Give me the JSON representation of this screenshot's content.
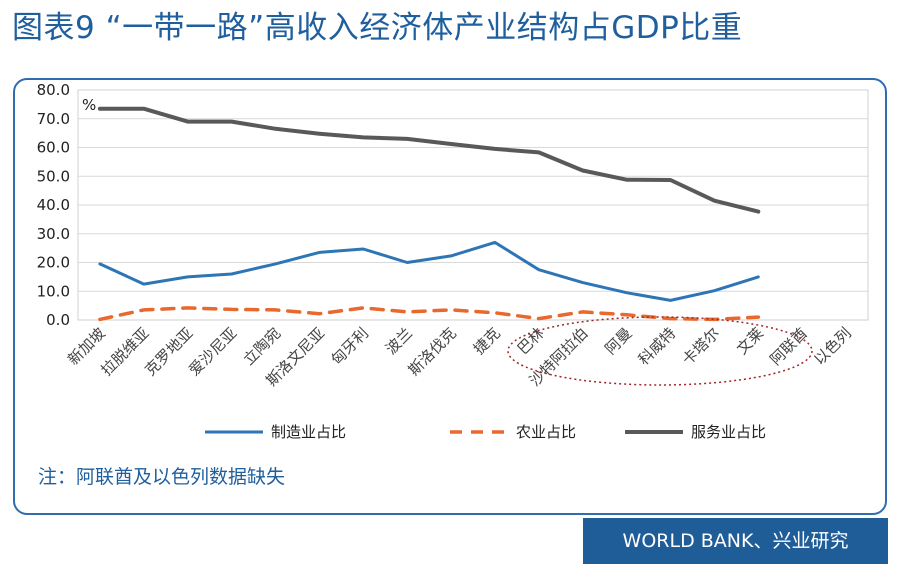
{
  "header": {
    "title": "图表9 “一带一路”高收入经济体产业结构占GDP比重"
  },
  "note": "注：阿联酋及以色列数据缺失",
  "source": "WORLD BANK、兴业研究",
  "colors": {
    "manufacturing": "#2e75b6",
    "agriculture": "#e8692e",
    "services": "#595959",
    "accent": "#1f5d98",
    "highlight": "#a0262c"
  },
  "chart_data": {
    "type": "line",
    "title": "图表9 “一带一路”高收入经济体产业结构占GDP比重",
    "ylabel": "%",
    "ylim": [
      0,
      80
    ],
    "y_ticks": [
      "0.0",
      "10.0",
      "20.0",
      "30.0",
      "40.0",
      "50.0",
      "60.0",
      "70.0",
      "80.0"
    ],
    "categories": [
      "新加坡",
      "拉脱维亚",
      "克罗地亚",
      "爱沙尼亚",
      "立陶宛",
      "斯洛文尼亚",
      "匈牙利",
      "波兰",
      "斯洛伐克",
      "捷克",
      "巴林",
      "沙特阿拉伯",
      "阿曼",
      "科威特",
      "卡塔尔",
      "文莱",
      "阿联酋",
      "以色列"
    ],
    "series": [
      {
        "name": "制造业占比",
        "style": "solid",
        "values": [
          19.5,
          12.5,
          15,
          16,
          19.5,
          23.5,
          24.7,
          20,
          22.3,
          27,
          17.5,
          13,
          9.5,
          6.8,
          10.2,
          15,
          null,
          null
        ]
      },
      {
        "name": "农业占比",
        "style": "dashed",
        "values": [
          0.2,
          3.5,
          4.2,
          3.7,
          3.5,
          2.2,
          4.2,
          2.8,
          3.5,
          2.5,
          0.5,
          2.8,
          1.8,
          0.5,
          0.2,
          1,
          null,
          null
        ]
      },
      {
        "name": "服务业占比",
        "style": "solid",
        "values": [
          73.5,
          73.5,
          69,
          69,
          66.5,
          64.8,
          63.5,
          63,
          61.2,
          59.5,
          58.3,
          52,
          48.8,
          48.7,
          41.5,
          37.7,
          null,
          null
        ]
      }
    ],
    "grid": true,
    "legend": "bottom"
  }
}
